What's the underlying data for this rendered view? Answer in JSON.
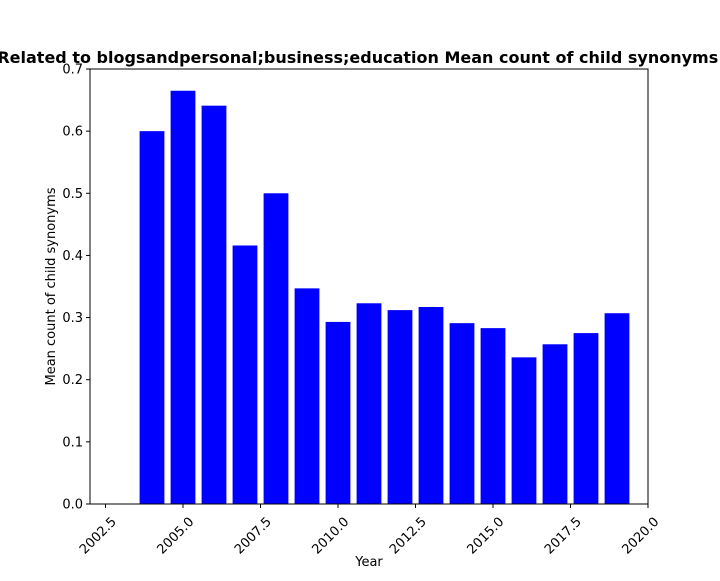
{
  "chart_data": {
    "type": "bar",
    "title": "Related to blogsandpersonal;business;education Mean count of child synonyms in",
    "xlabel": "Year",
    "ylabel": "Mean count of child synonyms",
    "bar_color": "#0000ff",
    "bar_width": 0.8,
    "x": [
      2004,
      2005,
      2006,
      2007,
      2008,
      2009,
      2010,
      2011,
      2012,
      2013,
      2014,
      2015,
      2016,
      2017,
      2018,
      2019
    ],
    "values": [
      0.6,
      0.665,
      0.641,
      0.416,
      0.5,
      0.347,
      0.293,
      0.323,
      0.312,
      0.317,
      0.291,
      0.283,
      0.236,
      0.257,
      0.275,
      0.307
    ],
    "xlim": [
      2002.0,
      2020.0
    ],
    "ylim": [
      0.0,
      0.7
    ],
    "xticks": [
      2002.5,
      2005.0,
      2007.5,
      2010.0,
      2012.5,
      2015.0,
      2017.5,
      2020.0
    ],
    "xtick_labels": [
      "2002.5",
      "2005.0",
      "2007.5",
      "2010.0",
      "2012.5",
      "2015.0",
      "2017.5",
      "2020.0"
    ],
    "yticks": [
      0.0,
      0.1,
      0.2,
      0.3,
      0.4,
      0.5,
      0.6,
      0.7
    ],
    "ytick_labels": [
      "0.0",
      "0.1",
      "0.2",
      "0.3",
      "0.4",
      "0.5",
      "0.6",
      "0.7"
    ],
    "grid": false,
    "legend": "none"
  }
}
